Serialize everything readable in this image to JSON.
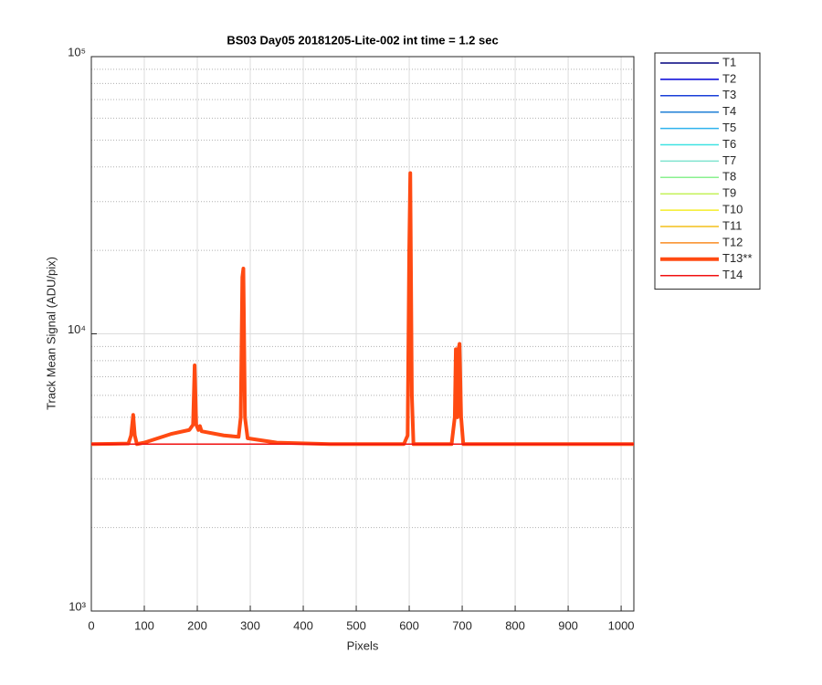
{
  "chart_data": {
    "type": "line",
    "title": "BS03 Day05 20181205-Lite-002 int time = 1.2 sec",
    "x_label": "Pixels",
    "y_label": "Track Mean Signal (ADU/pix)",
    "log_y": true,
    "grid": true,
    "legend": "outside-right",
    "xlim": [
      0,
      1024
    ],
    "xticks": [
      0,
      100,
      200,
      300,
      400,
      500,
      600,
      700,
      800,
      900,
      1000
    ],
    "ylim": [
      1000,
      100000
    ],
    "yticks": [
      {
        "value": 1000,
        "label": "10³"
      },
      {
        "value": 10000,
        "label": "10⁴"
      },
      {
        "value": 100000,
        "label": "10⁵"
      }
    ],
    "x": [
      0,
      70,
      75,
      79,
      82,
      86,
      100,
      150,
      185,
      192,
      195,
      198,
      202,
      205,
      208,
      250,
      278,
      282,
      285,
      287,
      290,
      295,
      350,
      450,
      590,
      597,
      600,
      602,
      605,
      608,
      680,
      686,
      688,
      691,
      693,
      695,
      698,
      702,
      1024
    ],
    "series": [
      {
        "name": "T1",
        "color": "#00007f",
        "line_width": 1.5,
        "values": [
          4000,
          4000,
          4000,
          4000,
          4000,
          4000,
          4000,
          4000,
          4000,
          4000,
          4000,
          4000,
          4000,
          4000,
          4000,
          4000,
          4000,
          4000,
          4000,
          4000,
          4000,
          4000,
          4000,
          4000,
          4000,
          4000,
          4000,
          4000,
          4000,
          4000,
          4000,
          4000,
          4000,
          4000,
          4000,
          4000,
          4000,
          4000,
          4000
        ]
      },
      {
        "name": "T2",
        "color": "#0000d8",
        "line_width": 1.5,
        "values": [
          4000,
          4000,
          4000,
          4000,
          4000,
          4000,
          4000,
          4000,
          4000,
          4000,
          4000,
          4000,
          4000,
          4000,
          4000,
          4000,
          4000,
          4000,
          4000,
          4000,
          4000,
          4000,
          4000,
          4000,
          4000,
          4000,
          4000,
          4000,
          4000,
          4000,
          4000,
          4000,
          4000,
          4000,
          4000,
          4000,
          4000,
          4000,
          4000
        ]
      },
      {
        "name": "T3",
        "color": "#1a3fd8",
        "line_width": 1.5,
        "values": [
          4000,
          4000,
          4000,
          4000,
          4000,
          4000,
          4000,
          4000,
          4000,
          4000,
          4000,
          4000,
          4000,
          4000,
          4000,
          4000,
          4000,
          4000,
          4000,
          4000,
          4000,
          4000,
          4000,
          4000,
          4000,
          4000,
          4000,
          4000,
          4000,
          4000,
          4000,
          4000,
          4000,
          4000,
          4000,
          4000,
          4000,
          4000,
          4000
        ]
      },
      {
        "name": "T4",
        "color": "#1f7fd6",
        "line_width": 1.5,
        "values": [
          4000,
          4000,
          4000,
          4000,
          4000,
          4000,
          4000,
          4000,
          4000,
          4000,
          4000,
          4000,
          4000,
          4000,
          4000,
          4000,
          4000,
          4000,
          4000,
          4000,
          4000,
          4000,
          4000,
          4000,
          4000,
          4000,
          4000,
          4000,
          4000,
          4000,
          4000,
          4000,
          4000,
          4000,
          4000,
          4000,
          4000,
          4000,
          4000
        ]
      },
      {
        "name": "T5",
        "color": "#2fb2ee",
        "line_width": 1.5,
        "values": [
          4000,
          4000,
          4000,
          4000,
          4000,
          4000,
          4000,
          4000,
          4000,
          4000,
          4000,
          4000,
          4000,
          4000,
          4000,
          4000,
          4000,
          4000,
          4000,
          4000,
          4000,
          4000,
          4000,
          4000,
          4000,
          4000,
          4000,
          4000,
          4000,
          4000,
          4000,
          4000,
          4000,
          4000,
          4000,
          4000,
          4000,
          4000,
          4000
        ]
      },
      {
        "name": "T6",
        "color": "#3fe3e3",
        "line_width": 1.5,
        "values": [
          4000,
          4000,
          4000,
          4000,
          4000,
          4000,
          4000,
          4000,
          4000,
          4000,
          4000,
          4000,
          4000,
          4000,
          4000,
          4000,
          4000,
          4000,
          4000,
          4000,
          4000,
          4000,
          4000,
          4000,
          4000,
          4000,
          4000,
          4000,
          4000,
          4000,
          4000,
          4000,
          4000,
          4000,
          4000,
          4000,
          4000,
          4000,
          4000
        ]
      },
      {
        "name": "T7",
        "color": "#7fe3cf",
        "line_width": 1.5,
        "values": [
          4000,
          4000,
          4000,
          4000,
          4000,
          4000,
          4000,
          4000,
          4000,
          4000,
          4000,
          4000,
          4000,
          4000,
          4000,
          4000,
          4000,
          4000,
          4000,
          4000,
          4000,
          4000,
          4000,
          4000,
          4000,
          4000,
          4000,
          4000,
          4000,
          4000,
          4000,
          4000,
          4000,
          4000,
          4000,
          4000,
          4000,
          4000,
          4000
        ]
      },
      {
        "name": "T8",
        "color": "#8af08f",
        "line_width": 1.5,
        "values": [
          4000,
          4000,
          4000,
          4000,
          4000,
          4000,
          4000,
          4000,
          4000,
          4000,
          4000,
          4000,
          4000,
          4000,
          4000,
          4000,
          4000,
          4000,
          4000,
          4000,
          4000,
          4000,
          4000,
          4000,
          4000,
          4000,
          4000,
          4000,
          4000,
          4000,
          4000,
          4000,
          4000,
          4000,
          4000,
          4000,
          4000,
          4000,
          4000
        ]
      },
      {
        "name": "T9",
        "color": "#c4f25a",
        "line_width": 1.5,
        "values": [
          4000,
          4000,
          4000,
          4000,
          4000,
          4000,
          4000,
          4000,
          4000,
          4000,
          4000,
          4000,
          4000,
          4000,
          4000,
          4000,
          4000,
          4000,
          4000,
          4000,
          4000,
          4000,
          4000,
          4000,
          4000,
          4000,
          4000,
          4000,
          4000,
          4000,
          4000,
          4000,
          4000,
          4000,
          4000,
          4000,
          4000,
          4000,
          4000
        ]
      },
      {
        "name": "T10",
        "color": "#f5ee2a",
        "line_width": 1.5,
        "values": [
          4000,
          4000,
          4000,
          4000,
          4000,
          4000,
          4000,
          4000,
          4000,
          4000,
          4000,
          4000,
          4000,
          4000,
          4000,
          4000,
          4000,
          4000,
          4000,
          4000,
          4000,
          4000,
          4000,
          4000,
          4000,
          4000,
          4000,
          4000,
          4000,
          4000,
          4000,
          4000,
          4000,
          4000,
          4000,
          4000,
          4000,
          4000,
          4000
        ]
      },
      {
        "name": "T11",
        "color": "#f4bf1a",
        "line_width": 1.5,
        "values": [
          4000,
          4000,
          4000,
          4000,
          4000,
          4000,
          4000,
          4000,
          4000,
          4000,
          4000,
          4000,
          4000,
          4000,
          4000,
          4000,
          4000,
          4000,
          4000,
          4000,
          4000,
          4000,
          4000,
          4000,
          4000,
          4000,
          4000,
          4000,
          4000,
          4000,
          4000,
          4000,
          4000,
          4000,
          4000,
          4000,
          4000,
          4000,
          4000
        ]
      },
      {
        "name": "T12",
        "color": "#fa8c22",
        "line_width": 1.5,
        "values": [
          4000,
          4000,
          4000,
          4000,
          4000,
          4000,
          4000,
          4000,
          4000,
          4000,
          4000,
          4000,
          4000,
          4000,
          4000,
          4000,
          4000,
          4000,
          4000,
          4000,
          4000,
          4000,
          4000,
          4000,
          4000,
          4000,
          4000,
          4000,
          4000,
          4000,
          4000,
          4000,
          4000,
          4000,
          4000,
          4000,
          4000,
          4000,
          4000
        ]
      },
      {
        "name": "T13**",
        "color": "#ff4a12",
        "line_width": 4,
        "values": [
          4000,
          4020,
          4300,
          5100,
          4300,
          4000,
          4050,
          4350,
          4500,
          4700,
          7700,
          4700,
          4500,
          4650,
          4450,
          4300,
          4250,
          5000,
          16000,
          17200,
          5000,
          4200,
          4050,
          4000,
          4000,
          4300,
          20000,
          38000,
          6000,
          4000,
          4000,
          5000,
          8800,
          5000,
          8800,
          9200,
          5000,
          4000,
          4000
        ]
      },
      {
        "name": "T14",
        "color": "#f01010",
        "line_width": 1.5,
        "values": [
          4000,
          4000,
          4000,
          4000,
          4000,
          4000,
          4000,
          4000,
          4000,
          4000,
          4000,
          4000,
          4000,
          4000,
          4000,
          4000,
          4000,
          4000,
          4000,
          4000,
          4000,
          4000,
          4000,
          4000,
          4000,
          4000,
          4000,
          4000,
          4000,
          4000,
          4000,
          4000,
          4000,
          4000,
          4000,
          4000,
          4000,
          4000,
          4000
        ]
      }
    ]
  }
}
